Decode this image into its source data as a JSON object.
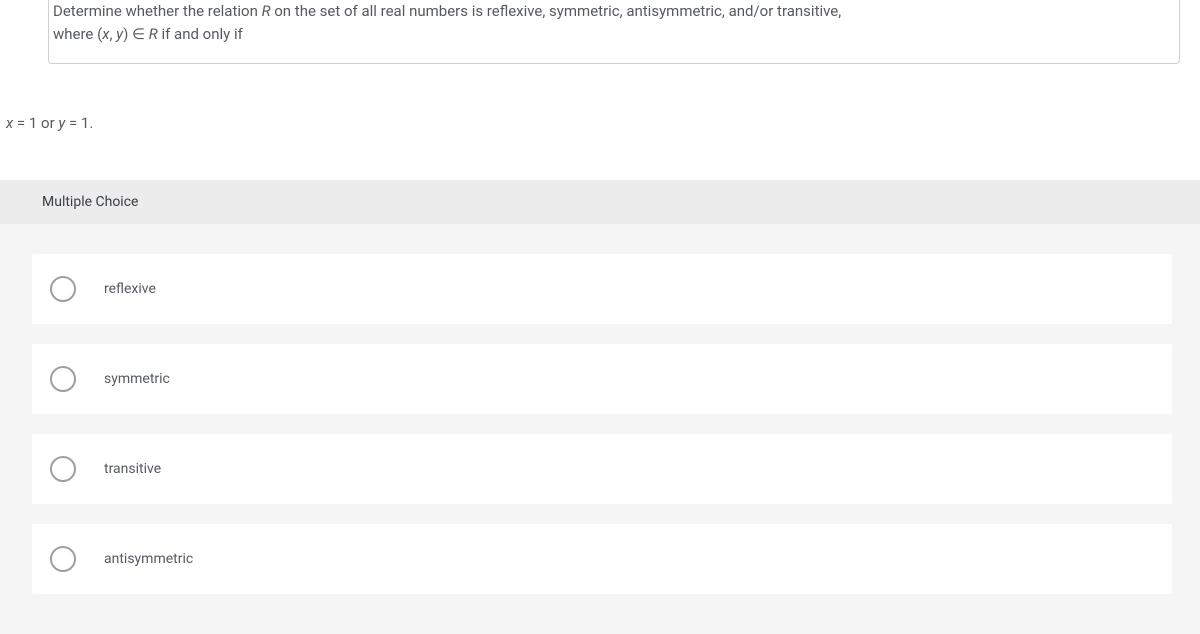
{
  "question": {
    "line1_pre": "Determine whether the relation ",
    "line1_var": "R ",
    "line1_post": "on the set of all real numbers is reflexive, symmetric, antisymmetric, and/or transitive,",
    "line2_pre": "where (",
    "line2_x": "x",
    "line2_mid1": ", ",
    "line2_y": "y",
    "line2_mid2": ") ∈ ",
    "line2_var": "R ",
    "line2_post": "if and only if"
  },
  "condition": {
    "x": "x ",
    "eq1": "= 1 or ",
    "y": "y ",
    "eq2": "= 1."
  },
  "mc_header": "Multiple Choice",
  "options": [
    {
      "label": "reflexive"
    },
    {
      "label": "symmetric"
    },
    {
      "label": "transitive"
    },
    {
      "label": "antisymmetric"
    }
  ],
  "colors": {
    "text": "#555a60",
    "border": "#d0d0d0",
    "section_bg": "#f5f5f5",
    "header_bg": "#ececec",
    "radio_border": "#9aa0a6"
  }
}
